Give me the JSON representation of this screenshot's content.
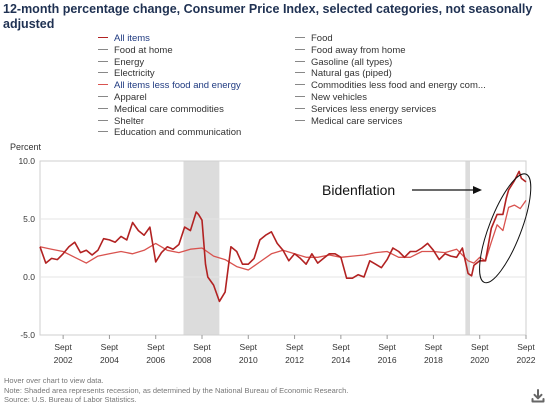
{
  "title": "12-month percentage change, Consumer Price Index, selected categories, not seasonally adjusted",
  "legend": {
    "col1": [
      {
        "label": "All items",
        "color": "#b22222",
        "active": true
      },
      {
        "label": "Food at home",
        "color": "#888888",
        "active": false
      },
      {
        "label": "Energy",
        "color": "#888888",
        "active": false
      },
      {
        "label": "Electricity",
        "color": "#888888",
        "active": false
      },
      {
        "label": "All items less food and energy",
        "color": "#d9534f",
        "active": true
      },
      {
        "label": "Apparel",
        "color": "#888888",
        "active": false
      },
      {
        "label": "Medical care commodities",
        "color": "#888888",
        "active": false
      },
      {
        "label": "Shelter",
        "color": "#888888",
        "active": false
      },
      {
        "label": "Education and communication",
        "color": "#888888",
        "active": false
      }
    ],
    "col2": [
      {
        "label": "Food",
        "color": "#888888",
        "active": false
      },
      {
        "label": "Food away from home",
        "color": "#888888",
        "active": false
      },
      {
        "label": "Gasoline (all types)",
        "color": "#888888",
        "active": false
      },
      {
        "label": "Natural gas (piped)",
        "color": "#888888",
        "active": false
      },
      {
        "label": "Commodities less food and energy com...",
        "color": "#888888",
        "active": false
      },
      {
        "label": "New vehicles",
        "color": "#888888",
        "active": false
      },
      {
        "label": "Services less energy services",
        "color": "#888888",
        "active": false
      },
      {
        "label": "Medical care services",
        "color": "#888888",
        "active": false
      }
    ]
  },
  "annotation": {
    "text": "Bidenflation"
  },
  "footer": {
    "line1": "Hover over chart to view data.",
    "line2": "Note: Shaded area represents recession, as determined by the National Bureau of Economic Research.",
    "line3": "Source: U.S. Bureau of Labor Statistics."
  },
  "icons": {
    "download": "download-icon"
  },
  "chart_data": {
    "type": "line",
    "ylabel": "Percent",
    "ylim": [
      -5.0,
      10.0
    ],
    "yticks": [
      "10.0",
      "5.0",
      "0.0",
      "-5.0"
    ],
    "xlim": [
      2001.75,
      2022.75
    ],
    "xticks": [
      {
        "year": 2002,
        "month": "Sept"
      },
      {
        "year": 2004,
        "month": "Sept"
      },
      {
        "year": 2006,
        "month": "Sept"
      },
      {
        "year": 2008,
        "month": "Sept"
      },
      {
        "year": 2010,
        "month": "Sept"
      },
      {
        "year": 2012,
        "month": "Sept"
      },
      {
        "year": 2014,
        "month": "Sept"
      },
      {
        "year": 2016,
        "month": "Sept"
      },
      {
        "year": 2018,
        "month": "Sept"
      },
      {
        "year": 2020,
        "month": "Sept"
      },
      {
        "year": 2022,
        "month": "Sept"
      }
    ],
    "grid": "horizontal",
    "recessions": [
      {
        "start": 2007.95,
        "end": 2009.5
      },
      {
        "start": 2020.13,
        "end": 2020.33
      }
    ],
    "series": [
      {
        "name": "All items",
        "color": "#b22222",
        "width": 1.6,
        "points": [
          [
            2001.75,
            2.6
          ],
          [
            2002.0,
            1.2
          ],
          [
            2002.25,
            1.6
          ],
          [
            2002.5,
            1.5
          ],
          [
            2002.75,
            2.0
          ],
          [
            2003.0,
            2.6
          ],
          [
            2003.25,
            3.0
          ],
          [
            2003.5,
            2.1
          ],
          [
            2003.75,
            2.3
          ],
          [
            2004.0,
            1.9
          ],
          [
            2004.25,
            2.3
          ],
          [
            2004.5,
            3.3
          ],
          [
            2004.75,
            3.2
          ],
          [
            2005.0,
            3.0
          ],
          [
            2005.25,
            3.5
          ],
          [
            2005.5,
            3.2
          ],
          [
            2005.75,
            4.7
          ],
          [
            2006.0,
            4.0
          ],
          [
            2006.25,
            3.6
          ],
          [
            2006.5,
            4.3
          ],
          [
            2006.75,
            1.3
          ],
          [
            2007.0,
            2.1
          ],
          [
            2007.25,
            2.6
          ],
          [
            2007.5,
            2.4
          ],
          [
            2007.75,
            2.8
          ],
          [
            2008.0,
            4.3
          ],
          [
            2008.25,
            4.0
          ],
          [
            2008.5,
            5.6
          ],
          [
            2008.6,
            5.4
          ],
          [
            2008.75,
            4.9
          ],
          [
            2008.9,
            1.1
          ],
          [
            2009.0,
            0.0
          ],
          [
            2009.25,
            -0.7
          ],
          [
            2009.5,
            -2.1
          ],
          [
            2009.75,
            -1.3
          ],
          [
            2010.0,
            2.6
          ],
          [
            2010.25,
            2.2
          ],
          [
            2010.5,
            1.1
          ],
          [
            2010.75,
            1.1
          ],
          [
            2011.0,
            1.6
          ],
          [
            2011.25,
            3.2
          ],
          [
            2011.5,
            3.6
          ],
          [
            2011.75,
            3.9
          ],
          [
            2012.0,
            2.9
          ],
          [
            2012.25,
            2.3
          ],
          [
            2012.5,
            1.4
          ],
          [
            2012.75,
            2.0
          ],
          [
            2013.0,
            1.6
          ],
          [
            2013.25,
            1.1
          ],
          [
            2013.5,
            2.0
          ],
          [
            2013.75,
            1.2
          ],
          [
            2014.0,
            1.6
          ],
          [
            2014.25,
            2.0
          ],
          [
            2014.5,
            2.0
          ],
          [
            2014.75,
            1.7
          ],
          [
            2015.0,
            -0.1
          ],
          [
            2015.25,
            -0.1
          ],
          [
            2015.5,
            0.2
          ],
          [
            2015.75,
            0.0
          ],
          [
            2016.0,
            1.4
          ],
          [
            2016.25,
            1.1
          ],
          [
            2016.5,
            0.8
          ],
          [
            2016.75,
            1.5
          ],
          [
            2017.0,
            2.5
          ],
          [
            2017.25,
            2.2
          ],
          [
            2017.5,
            1.7
          ],
          [
            2017.75,
            2.2
          ],
          [
            2018.0,
            2.2
          ],
          [
            2018.25,
            2.5
          ],
          [
            2018.5,
            2.9
          ],
          [
            2018.75,
            2.3
          ],
          [
            2019.0,
            1.5
          ],
          [
            2019.25,
            2.0
          ],
          [
            2019.5,
            1.8
          ],
          [
            2019.75,
            1.7
          ],
          [
            2020.0,
            2.5
          ],
          [
            2020.25,
            0.3
          ],
          [
            2020.4,
            0.1
          ],
          [
            2020.5,
            1.0
          ],
          [
            2020.75,
            1.4
          ],
          [
            2021.0,
            1.4
          ],
          [
            2021.25,
            4.2
          ],
          [
            2021.5,
            5.4
          ],
          [
            2021.75,
            5.4
          ],
          [
            2021.9,
            6.8
          ],
          [
            2022.0,
            7.5
          ],
          [
            2022.25,
            8.3
          ],
          [
            2022.45,
            9.1
          ],
          [
            2022.55,
            8.5
          ],
          [
            2022.75,
            8.2
          ]
        ]
      },
      {
        "name": "All items less food and energy",
        "color": "#d9534f",
        "width": 1.3,
        "points": [
          [
            2001.75,
            2.6
          ],
          [
            2002.25,
            2.4
          ],
          [
            2002.75,
            2.2
          ],
          [
            2003.25,
            1.7
          ],
          [
            2003.75,
            1.2
          ],
          [
            2004.25,
            1.8
          ],
          [
            2004.75,
            2.0
          ],
          [
            2005.25,
            2.2
          ],
          [
            2005.75,
            2.0
          ],
          [
            2006.25,
            2.3
          ],
          [
            2006.75,
            2.9
          ],
          [
            2007.25,
            2.3
          ],
          [
            2007.75,
            2.1
          ],
          [
            2008.25,
            2.4
          ],
          [
            2008.75,
            2.5
          ],
          [
            2009.25,
            1.8
          ],
          [
            2009.75,
            1.5
          ],
          [
            2010.25,
            0.9
          ],
          [
            2010.75,
            0.6
          ],
          [
            2011.25,
            1.3
          ],
          [
            2011.75,
            2.0
          ],
          [
            2012.25,
            2.3
          ],
          [
            2012.75,
            2.0
          ],
          [
            2013.25,
            1.7
          ],
          [
            2013.75,
            1.7
          ],
          [
            2014.25,
            1.9
          ],
          [
            2014.75,
            1.7
          ],
          [
            2015.25,
            1.8
          ],
          [
            2015.75,
            1.9
          ],
          [
            2016.25,
            2.1
          ],
          [
            2016.75,
            2.2
          ],
          [
            2017.25,
            1.7
          ],
          [
            2017.75,
            1.7
          ],
          [
            2018.25,
            2.2
          ],
          [
            2018.75,
            2.2
          ],
          [
            2019.25,
            2.1
          ],
          [
            2019.75,
            2.4
          ],
          [
            2020.25,
            1.4
          ],
          [
            2020.5,
            1.2
          ],
          [
            2020.75,
            1.7
          ],
          [
            2021.0,
            1.4
          ],
          [
            2021.25,
            3.0
          ],
          [
            2021.5,
            4.5
          ],
          [
            2021.75,
            4.0
          ],
          [
            2022.0,
            6.0
          ],
          [
            2022.25,
            6.2
          ],
          [
            2022.5,
            5.9
          ],
          [
            2022.75,
            6.6
          ]
        ]
      }
    ]
  }
}
